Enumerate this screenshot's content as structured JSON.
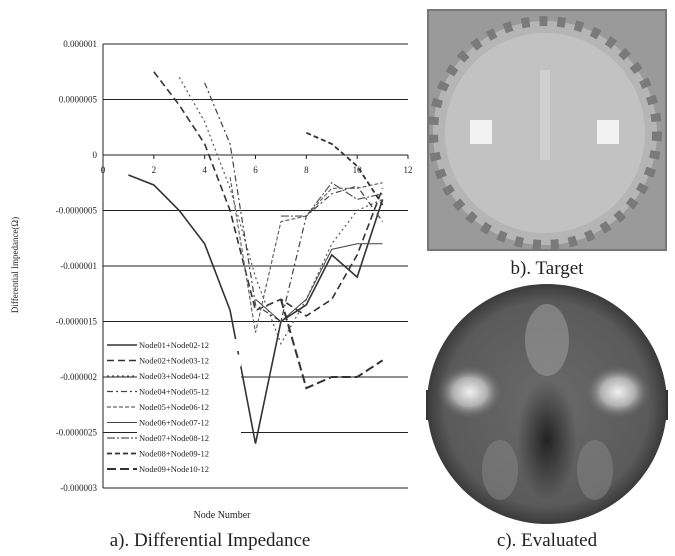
{
  "chart_data": {
    "type": "line",
    "y_label": "Differential Impedance(Ω)",
    "x_label": "Node Number",
    "x": [
      1,
      2,
      3,
      4,
      5,
      6,
      7,
      8,
      9,
      10,
      11
    ],
    "xlim": [
      0,
      12
    ],
    "xticks": [
      0,
      2,
      4,
      6,
      8,
      10,
      12
    ],
    "ylim": [
      -3e-06,
      1e-06
    ],
    "yticks": [
      {
        "value": 1e-06,
        "label": "0.000001"
      },
      {
        "value": 5e-07,
        "label": "0.0000005"
      },
      0,
      {
        "value": -5e-07,
        "label": "-0.0000005"
      },
      {
        "value": -1e-06,
        "label": "-0.000001"
      },
      {
        "value": -1.5e-06,
        "label": "-0.0000015"
      },
      {
        "value": -2e-06,
        "label": "-0.000002"
      },
      {
        "value": -2.5e-06,
        "label": "-0.0000025"
      },
      {
        "value": -3e-06,
        "label": "-0.000003"
      }
    ],
    "grid": true,
    "legend": "lower left",
    "series": [
      {
        "name": "Node01+Node02-12",
        "color": "#333333",
        "dash": "",
        "width": 1.6,
        "values": [
          -1.8e-07,
          -2.7e-07,
          -5e-07,
          -8e-07,
          -1.4e-06,
          -2.6e-06,
          -1.5e-06,
          -1.35e-06,
          -9e-07,
          -1.1e-06,
          -4e-07
        ]
      },
      {
        "name": "Node02+Node03-12",
        "color": "#333333",
        "dash": "7 4",
        "width": 1.6,
        "values": [
          null,
          7.5e-07,
          4.5e-07,
          1e-07,
          -5e-07,
          -1.4e-06,
          -1.3e-06,
          -1.45e-06,
          -1.3e-06,
          -9e-07,
          -3e-07
        ]
      },
      {
        "name": "Node03+Node04-12",
        "color": "#555555",
        "dash": "2 3",
        "width": 1.2,
        "values": [
          null,
          null,
          7e-07,
          3e-07,
          -3e-07,
          -1.1e-06,
          -1.7e-06,
          -1.3e-06,
          -8e-07,
          -5e-07,
          -4e-07
        ]
      },
      {
        "name": "Node04+Node05-12",
        "color": "#444444",
        "dash": "6 3 2 3",
        "width": 1.2,
        "values": [
          null,
          null,
          null,
          6.5e-07,
          1e-07,
          -1.35e-06,
          -1.5e-06,
          -5.5e-07,
          -3.5e-07,
          -2.8e-07,
          -6e-07
        ]
      },
      {
        "name": "Node05+Node06-12",
        "color": "#666666",
        "dash": "4 2",
        "width": 1.2,
        "values": [
          null,
          null,
          null,
          null,
          -2e-07,
          -1.6e-06,
          -6e-07,
          -5.5e-07,
          -3e-07,
          -3e-07,
          -2.5e-07
        ]
      },
      {
        "name": "Node06+Node07-12",
        "color": "#444444",
        "dash": "",
        "width": 1,
        "values": [
          null,
          null,
          null,
          null,
          null,
          -1.3e-06,
          -1.5e-06,
          -1.3e-06,
          -8.5e-07,
          -8e-07,
          -8e-07
        ]
      },
      {
        "name": "Node07+Node08-12",
        "color": "#555555",
        "dash": "8 2 2 2",
        "width": 1.2,
        "values": [
          null,
          null,
          null,
          null,
          null,
          null,
          -5.5e-07,
          -5.5e-07,
          -2.5e-07,
          -4e-07,
          -3.5e-07
        ]
      },
      {
        "name": "Node08+Node09-12",
        "color": "#333333",
        "dash": "5 3",
        "width": 1.8,
        "values": [
          null,
          null,
          null,
          null,
          null,
          null,
          null,
          2e-07,
          1e-07,
          -1e-07,
          -4.5e-07
        ]
      },
      {
        "name": "Node09+Node10-12",
        "color": "#333333",
        "dash": "9 4",
        "width": 2,
        "values": [
          null,
          null,
          null,
          null,
          null,
          null,
          -1.3e-06,
          -2.1e-06,
          -2e-06,
          -2e-06,
          -1.85e-06
        ]
      }
    ]
  },
  "captions": {
    "a": "a). Differential Impedance",
    "b": "b). Target",
    "c": "c). Evaluated"
  }
}
